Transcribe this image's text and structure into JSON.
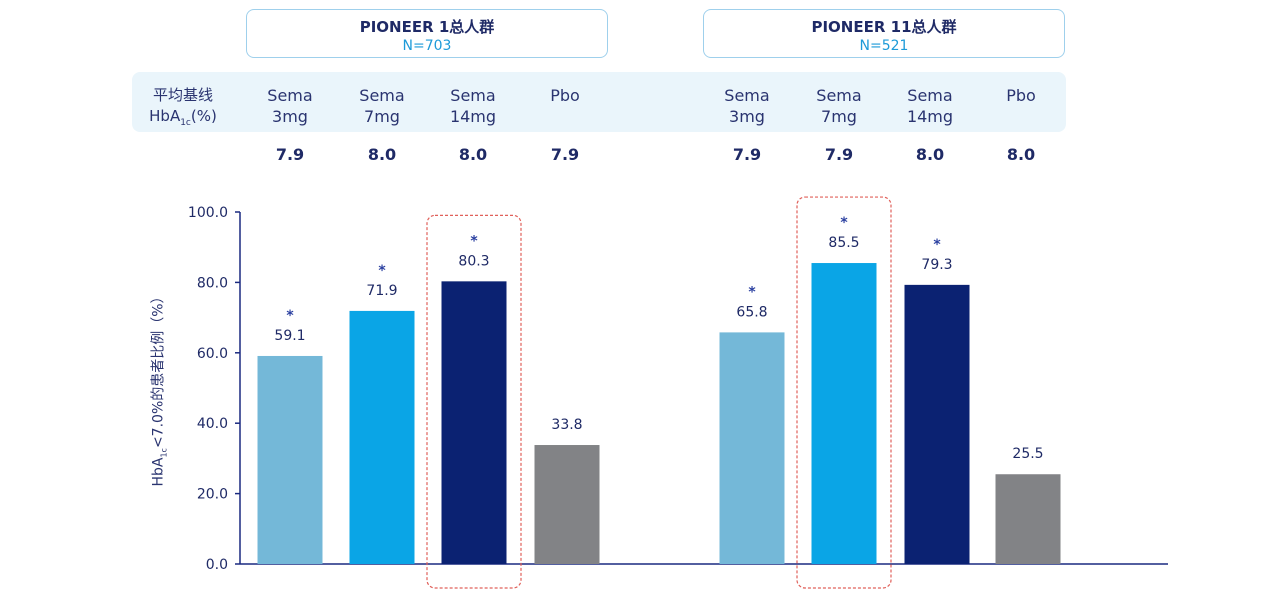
{
  "groups": [
    {
      "title": "PIONEER 1总人群",
      "n": "N=703"
    },
    {
      "title": "PIONEER 11总人群",
      "n": "N=521"
    }
  ],
  "baseline": {
    "line1": "平均基线",
    "hb": "HbA",
    "sub": "1c",
    "unit": "(%)"
  },
  "columns": [
    {
      "name": "Sema",
      "dose": "3mg",
      "baseline": "7.9"
    },
    {
      "name": "Sema",
      "dose": "7mg",
      "baseline": "8.0"
    },
    {
      "name": "Sema",
      "dose": "14mg",
      "baseline": "8.0"
    },
    {
      "name": "Pbo",
      "dose": "",
      "baseline": "7.9"
    },
    {
      "name": "Sema",
      "dose": "3mg",
      "baseline": "7.9"
    },
    {
      "name": "Sema",
      "dose": "7mg",
      "baseline": "7.9"
    },
    {
      "name": "Sema",
      "dose": "14mg",
      "baseline": "8.0"
    },
    {
      "name": "Pbo",
      "dose": "",
      "baseline": "8.0"
    }
  ],
  "ylabel": {
    "pre": "HbA",
    "sub": "1c",
    "post": "<7.0%的患者比例（%）"
  },
  "chart_data": {
    "type": "bar",
    "categories": [
      "Sema 3mg",
      "Sema 7mg",
      "Sema 14mg",
      "Pbo",
      "Sema 3mg",
      "Sema 7mg",
      "Sema 14mg",
      "Pbo"
    ],
    "values": [
      59.1,
      71.9,
      80.3,
      33.8,
      65.8,
      85.5,
      79.3,
      25.5
    ],
    "labels": [
      "59.1",
      "71.9",
      "80.3",
      "33.8",
      "65.8",
      "85.5",
      "79.3",
      "25.5"
    ],
    "significant": [
      true,
      true,
      true,
      false,
      true,
      true,
      true,
      false
    ],
    "highlighted": [
      false,
      false,
      true,
      false,
      false,
      true,
      false,
      false
    ],
    "star": "*",
    "colors": [
      "#74b8d8",
      "#0aa5e6",
      "#0b2272",
      "#828386",
      "#74b8d8",
      "#0aa5e6",
      "#0b2272",
      "#828386"
    ],
    "ylim": [
      0,
      100
    ],
    "ticks": [
      "0.0",
      "20.0",
      "40.0",
      "60.0",
      "80.0",
      "100.0"
    ],
    "highlight_color": "#e0605a",
    "axis_color": "#1a2a80"
  }
}
